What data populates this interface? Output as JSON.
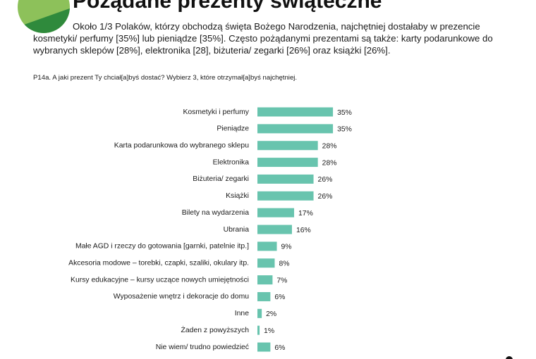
{
  "chart_data": {
    "type": "barh",
    "title": "Pożądane prezenty świąteczne",
    "subtitle": "Około 1/3 Polaków, którzy obchodzą  święta Bożego Narodzenia, najchętniej dostałaby w prezencie kosmetyki/ perfumy [35%] lub pieniądze [35%]. Często pożądanymi prezentami są także: karty podarunkowe do wybranych sklepów [28%], elektronika [28], biżuteria/ zegarki [26%] oraz książki [26%].",
    "question": "P14a. A jaki prezent Ty chciał[a]byś dostać? Wybierz 3, które otrzymał[a]byś najchętniej.",
    "categories": [
      "Kosmetyki i perfumy",
      "Pieniądze",
      "Karta podarunkowa do wybranego sklepu",
      "Elektronika",
      "Biżuteria/ zegarki",
      "Książki",
      "Bilety na wydarzenia",
      "Ubrania",
      "Małe AGD i rzeczy do gotowania [garnki, patelnie itp.]",
      "Akcesoria modowe – torebki, czapki, szaliki, okulary itp.",
      "Kursy edukacyjne – kursy uczące nowych umiejętności",
      "Wyposażenie wnętrz i dekoracje do domu",
      "Inne",
      "Żaden z powyższych",
      "Nie wiem/ trudno powiedzieć"
    ],
    "values": [
      35,
      35,
      28,
      28,
      26,
      26,
      17,
      16,
      9,
      8,
      7,
      6,
      2,
      1,
      6
    ],
    "value_labels": [
      "35%",
      "35%",
      "28%",
      "28%",
      "26%",
      "26%",
      "17%",
      "16%",
      "9%",
      "8%",
      "7%",
      "6%",
      "2%",
      "1%",
      "6%"
    ],
    "color": "#68c4ae"
  }
}
